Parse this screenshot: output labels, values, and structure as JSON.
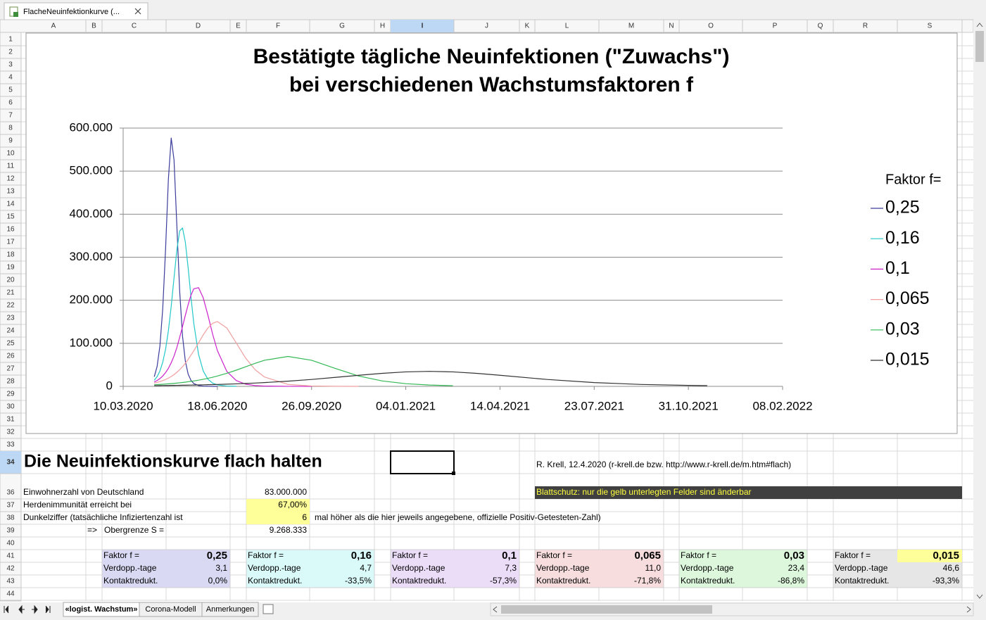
{
  "window": {
    "tab_title": "FlacheNeuinfektionkurve (..."
  },
  "sheet": {
    "columns": [
      "A",
      "B",
      "C",
      "D",
      "E",
      "F",
      "G",
      "H",
      "I",
      "J",
      "K",
      "L",
      "M",
      "N",
      "O",
      "P",
      "Q",
      "R",
      "S"
    ],
    "rows": [
      1,
      2,
      3,
      4,
      5,
      6,
      7,
      8,
      9,
      10,
      11,
      12,
      13,
      14,
      15,
      16,
      17,
      18,
      19,
      20,
      21,
      22,
      23,
      24,
      25,
      26,
      27,
      28,
      29,
      30,
      31,
      32,
      33,
      34,
      36,
      37,
      38,
      39,
      40,
      41,
      42,
      43,
      44
    ]
  },
  "chart_data": {
    "type": "line",
    "title": [
      "Bestätigte tägliche Neuinfektionen (\"Zuwachs\")",
      "bei verschiedenen Wachstumsfaktoren f"
    ],
    "legend_title": "Faktor f=",
    "legend": "right",
    "grid": true,
    "x": [
      "12.04.2020",
      "15.04.2020",
      "18.04.2020",
      "21.04.2020",
      "24.04.2020",
      "27.04.2020",
      "30.04.2020",
      "03.05.2020",
      "06.05.2020",
      "09.05.2020",
      "12.05.2020",
      "15.05.2020",
      "18.05.2020",
      "21.05.2020",
      "24.05.2020",
      "29.05.2020",
      "03.06.2020",
      "08.06.2020",
      "13.06.2020",
      "18.06.2020",
      "28.06.2020",
      "08.07.2020",
      "18.07.2020",
      "28.07.2020",
      "07.08.2020",
      "01.09.2020",
      "26.09.2020",
      "21.10.2020",
      "15.11.2020",
      "10.12.2020",
      "04.01.2021",
      "29.01.2021",
      "23.02.2021",
      "20.03.2021",
      "14.04.2021",
      "03.06.2021",
      "23.07.2021",
      "11.09.2021",
      "31.10.2021",
      "20.11.2021"
    ],
    "xlim": [
      "10.03.2020",
      "08.02.2022"
    ],
    "xticks": [
      "10.03.2020",
      "18.06.2020",
      "26.09.2020",
      "04.01.2021",
      "14.04.2021",
      "23.07.2021",
      "31.10.2021",
      "08.02.2022"
    ],
    "ylim": [
      0,
      600000
    ],
    "yticks": [
      0,
      {
        "value": 100000,
        "label": "100.000"
      },
      {
        "value": 200000,
        "label": "200.000"
      },
      {
        "value": 300000,
        "label": "300.000"
      },
      {
        "value": 400000,
        "label": "400.000"
      },
      {
        "value": 500000,
        "label": "500.000"
      },
      {
        "value": 600000,
        "label": "600.000"
      }
    ],
    "series": [
      {
        "name": "0,25",
        "color": "#3c3c9c",
        "values": [
          22400,
          45900,
          93400,
          180000,
          318000,
          481000,
          577000,
          526000,
          373000,
          221000,
          117000,
          58600,
          28500,
          13800,
          6500,
          1900,
          500,
          150,
          40,
          10,
          null,
          null,
          null,
          null,
          null,
          null,
          null,
          null,
          null,
          null,
          null,
          null,
          null,
          null,
          null,
          null,
          null,
          null,
          null,
          null
        ]
      },
      {
        "name": "0,16",
        "color": "#22c8c8",
        "values": [
          14100,
          22400,
          35600,
          55800,
          86000,
          129000,
          186000,
          252000,
          317000,
          361000,
          368000,
          335000,
          275000,
          207000,
          146000,
          74600,
          35600,
          16400,
          7500,
          3400,
          700,
          140,
          null,
          null,
          null,
          null,
          null,
          null,
          null,
          null,
          null,
          null,
          null,
          null,
          null,
          null,
          null,
          null,
          null,
          null
        ]
      },
      {
        "name": "0,1",
        "color": "#cc22cc",
        "values": [
          10100,
          13500,
          18000,
          24000,
          31800,
          41900,
          54700,
          70400,
          90100,
          113800,
          139000,
          165000,
          190000,
          212000,
          226600,
          229400,
          205500,
          165000,
          121000,
          83200,
          34900,
          13500,
          5100,
          1900,
          700,
          60,
          5,
          null,
          null,
          null,
          null,
          null,
          null,
          null,
          null,
          null,
          null,
          null,
          null,
          null
        ]
      },
      {
        "name": "0,065",
        "color": "#f0a0a0",
        "values": [
          7500,
          9100,
          11100,
          13300,
          15900,
          19200,
          22900,
          27400,
          32700,
          38800,
          45600,
          53800,
          62500,
          72700,
          82700,
          101000,
          119600,
          135700,
          146700,
          150600,
          135700,
          101000,
          65700,
          38800,
          21700,
          4500,
          900,
          180,
          35,
          null,
          null,
          null,
          null,
          null,
          null,
          null,
          null,
          null,
          null,
          null
        ]
      },
      {
        "name": "0,03",
        "color": "#33b855",
        "values": [
          3800,
          4200,
          4500,
          4900,
          5400,
          5900,
          6400,
          7000,
          7600,
          8300,
          9000,
          9800,
          10700,
          11600,
          12600,
          14400,
          16400,
          18700,
          21100,
          24000,
          30300,
          37600,
          45500,
          53400,
          60600,
          69500,
          60600,
          41700,
          24000,
          12600,
          6200,
          3000,
          1500,
          null,
          null,
          null,
          null,
          null,
          null,
          null
        ]
      },
      {
        "name": "0,015",
        "color": "#333333",
        "values": [
          1700,
          1770,
          1850,
          1930,
          2020,
          2100,
          2200,
          2290,
          2390,
          2500,
          2610,
          2720,
          2840,
          2960,
          3120,
          3350,
          3600,
          3860,
          4140,
          4400,
          5100,
          5800,
          6700,
          7700,
          8800,
          12000,
          16000,
          20900,
          25700,
          30300,
          33600,
          34800,
          33600,
          30300,
          25700,
          16000,
          8800,
          4400,
          2200,
          1600
        ]
      }
    ]
  },
  "cells": {
    "title": "Die Neuinfektionskurve flach halten",
    "author": "R. Krell,  12.4.2020  (r-krell.de bzw. http://www.r-krell.de/m.htm#flach)",
    "population_label": "Einwohnerzahl von Deutschland",
    "population": "83.000.000",
    "protection_note": "Blattschutz: nur die gelb unterlegten Felder sind änderbar",
    "herd_label": "Herdenimmunität erreicht bei",
    "herd_value": "67,00%",
    "dark_label": "Dunkelziffer (tatsächliche Infiziertenzahl ist",
    "dark_value": "6",
    "dark_note": "mal höher als die hier jeweils angegebene, offizielle Positiv-Getesteten-Zahl)",
    "arrow": "=>",
    "limit_label": "Obergrenze  S =",
    "limit_value": "9.268.333",
    "factors": [
      {
        "faktor_label": "Faktor f =",
        "faktor": "0,25",
        "verd_label": "Verdopp.-tage",
        "verd": "3,1",
        "kontakt_label": "Kontaktredukt.",
        "kontakt": "0,0%"
      },
      {
        "faktor_label": "Faktor f =",
        "faktor": "0,16",
        "verd_label": "Verdopp.-tage",
        "verd": "4,7",
        "kontakt_label": "Kontaktredukt.",
        "kontakt": "-33,5%"
      },
      {
        "faktor_label": "Faktor f =",
        "faktor": "0,1",
        "verd_label": "Verdopp.-tage",
        "verd": "7,3",
        "kontakt_label": "Kontaktredukt.",
        "kontakt": "-57,3%"
      },
      {
        "faktor_label": "Faktor f =",
        "faktor": "0,065",
        "verd_label": "Verdopp.-tage",
        "verd": "11,0",
        "kontakt_label": "Kontaktredukt.",
        "kontakt": "-71,8%"
      },
      {
        "faktor_label": "Faktor f =",
        "faktor": "0,03",
        "verd_label": "Verdopp.-tage",
        "verd": "23,4",
        "kontakt_label": "Kontaktredukt.",
        "kontakt": "-86,8%"
      },
      {
        "faktor_label": "Faktor f =",
        "faktor": "0,015",
        "verd_label": "Verdopp.-tage",
        "verd": "46,6",
        "kontakt_label": "Kontaktredukt.",
        "kontakt": "-93,3%"
      }
    ]
  },
  "sheet_tabs": [
    "«logist. Wachstum»",
    "Corona-Modell",
    "Anmerkungen"
  ]
}
